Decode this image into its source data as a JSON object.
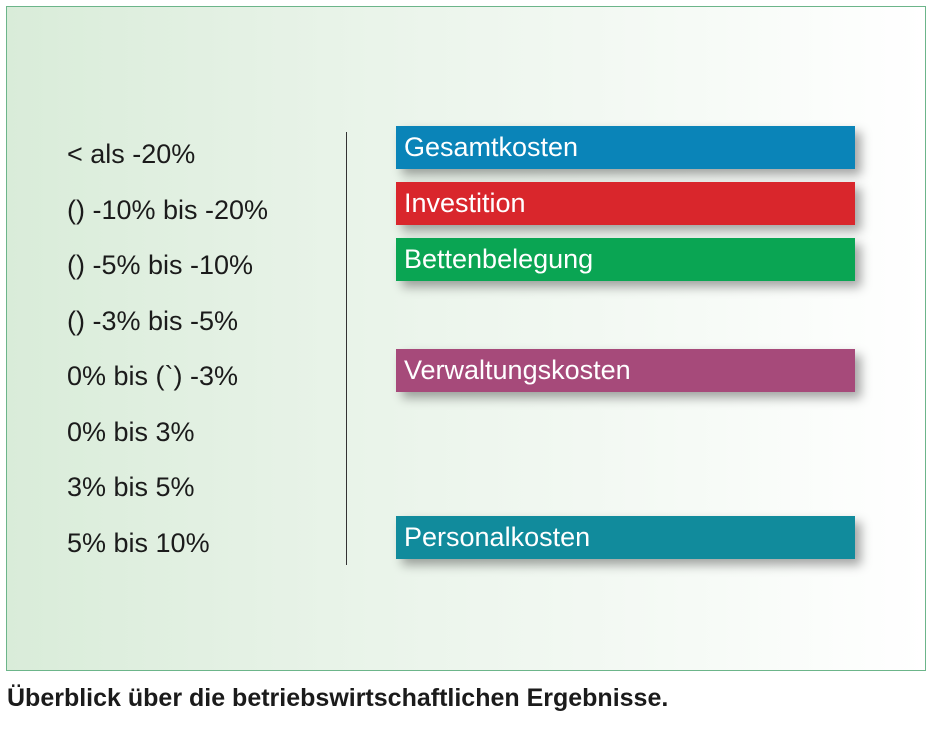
{
  "ranges": [
    "< als -20%",
    "() -10% bis -20%",
    "() -5% bis -10%",
    "() -3% bis -5%",
    "0% bis (`) -3%",
    "0% bis 3%",
    "3% bis 5%",
    "5% bis 10%"
  ],
  "bars": [
    {
      "label": "Gesamtkosten",
      "range_index": 0,
      "color": "#0a84b8"
    },
    {
      "label": "Investition",
      "range_index": 1,
      "color": "#d9262c"
    },
    {
      "label": "Bettenbelegung",
      "range_index": 2,
      "color": "#0aa553"
    },
    {
      "label": "Verwaltungskosten",
      "range_index": 4,
      "color": "#a64a7a"
    },
    {
      "label": "Personalkosten",
      "range_index": 7,
      "color": "#118b9c"
    }
  ],
  "caption": "Überblick über die betriebswirtschaftlichen Ergebnisse."
}
